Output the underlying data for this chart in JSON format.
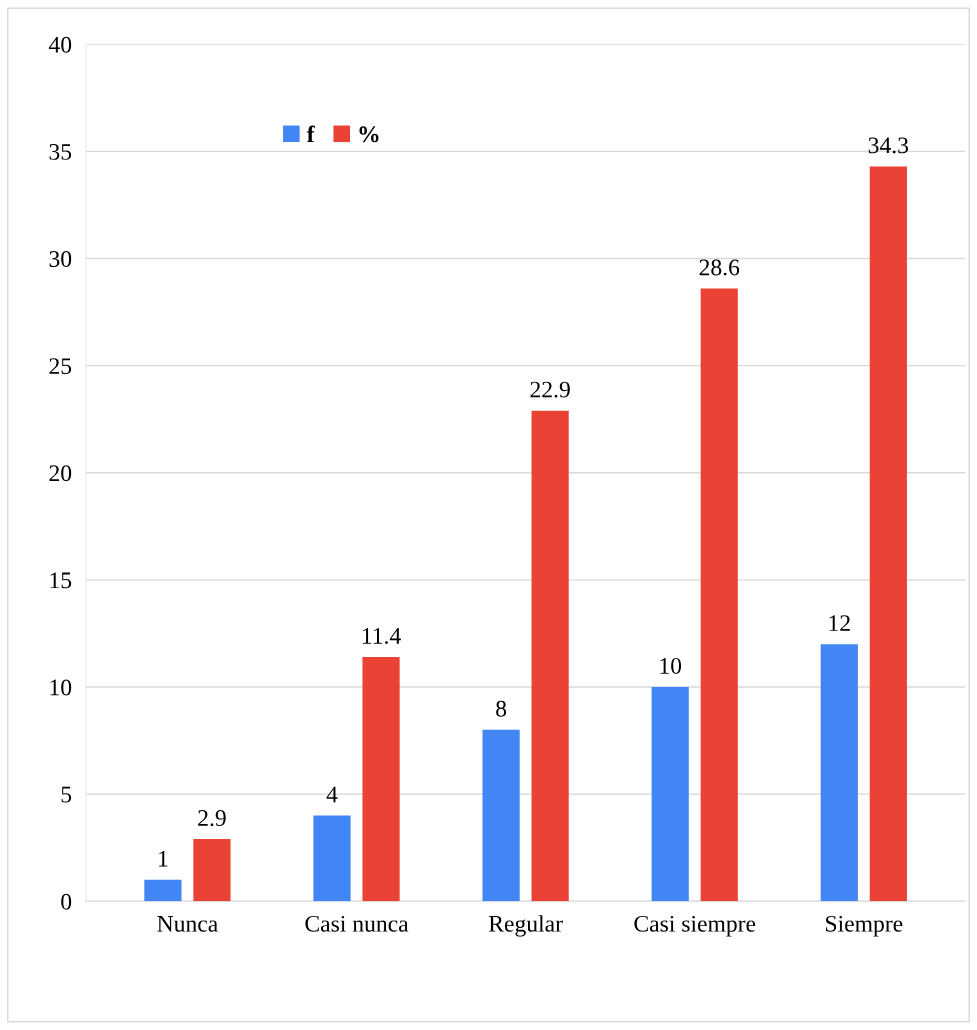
{
  "chart_data": {
    "type": "bar",
    "categories": [
      "Nunca",
      "Casi nunca",
      "Regular",
      "Casi siempre",
      "Siempre"
    ],
    "series": [
      {
        "name": "f",
        "color": "#4285f4",
        "values": [
          1,
          4,
          8,
          10,
          12
        ]
      },
      {
        "name": "%",
        "color": "#ea4335",
        "values": [
          2.9,
          11.4,
          22.9,
          28.6,
          34.3
        ]
      }
    ],
    "ylim": [
      0,
      40
    ],
    "yticks": [
      0,
      5,
      10,
      15,
      20,
      25,
      30,
      35,
      40
    ],
    "grid": "y",
    "legend": "top left",
    "data_labels": true
  }
}
